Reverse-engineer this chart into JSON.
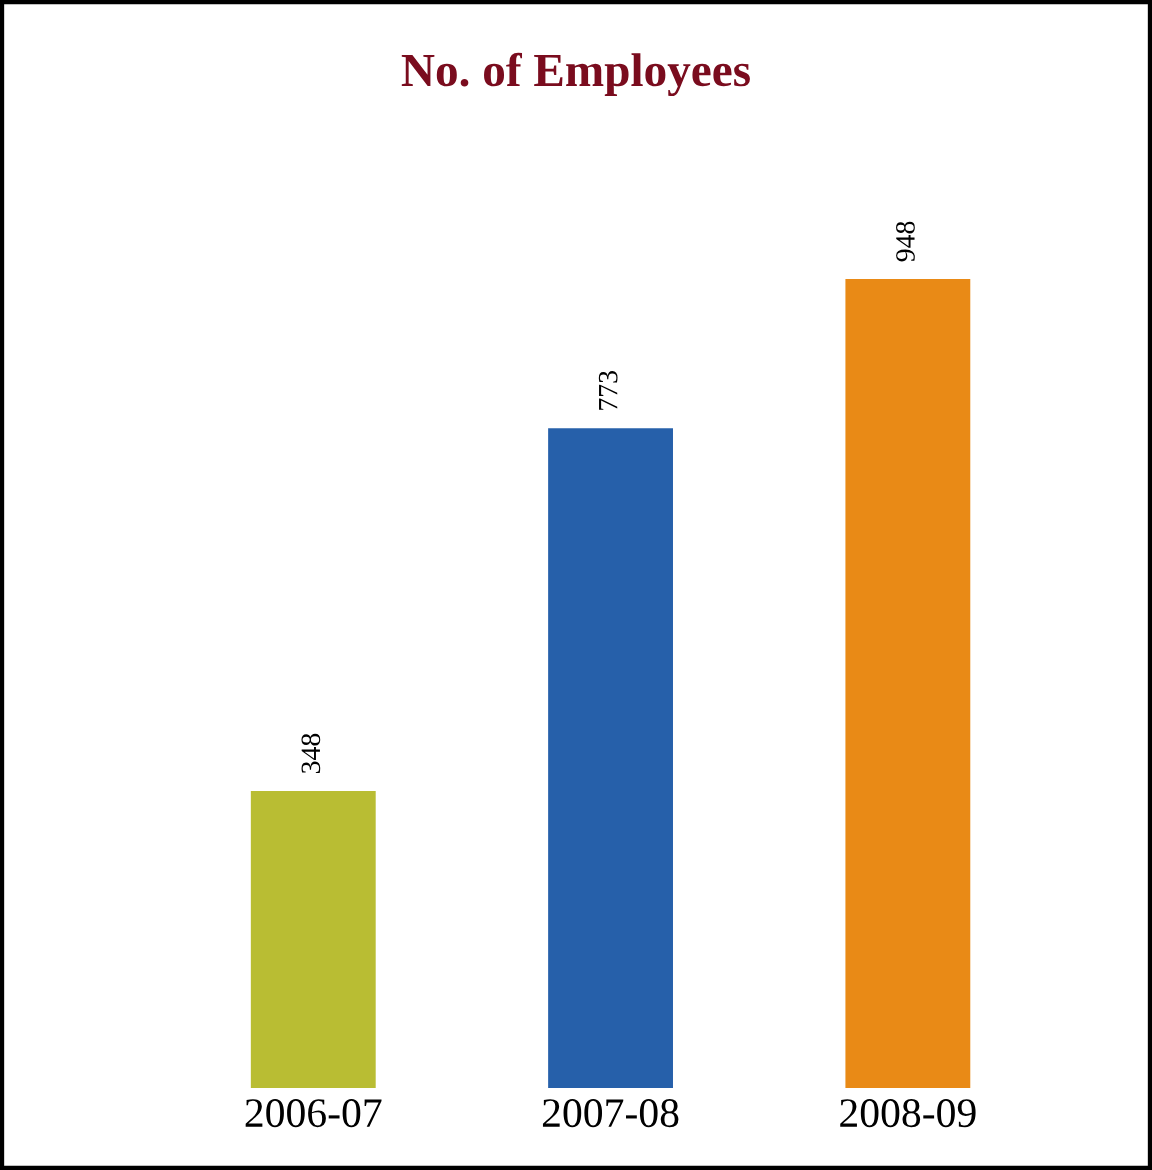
{
  "chart_data": {
    "type": "bar",
    "title": "No. of Employees",
    "categories": [
      "2006-07",
      "2007-08",
      "2008-09"
    ],
    "values": [
      348,
      773,
      948
    ],
    "colors": [
      "#b9bd33",
      "#2660aa",
      "#e98a16"
    ],
    "data_labels": true
  }
}
